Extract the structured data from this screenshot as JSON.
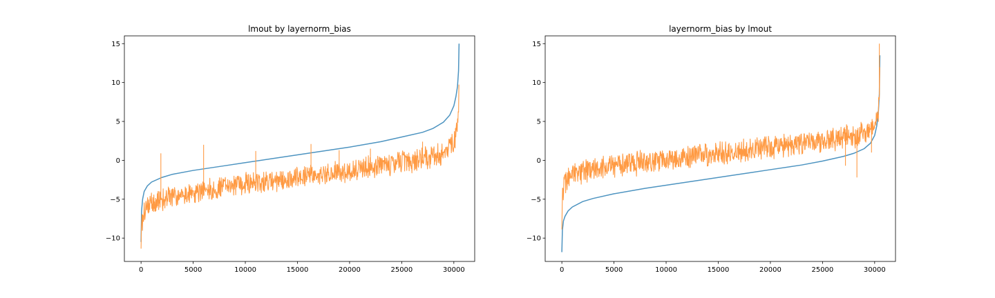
{
  "chart_data": [
    {
      "type": "line",
      "title": "lmout by layernorm_bias",
      "xlabel": "",
      "ylabel": "",
      "xlim": [
        -1600,
        32000
      ],
      "ylim": [
        -13,
        16
      ],
      "xticks": [
        0,
        5000,
        10000,
        15000,
        20000,
        25000,
        30000
      ],
      "yticks": [
        -10,
        -5,
        0,
        5,
        10,
        15
      ],
      "xtick_labels": [
        "0",
        "5000",
        "10000",
        "15000",
        "20000",
        "25000",
        "30000"
      ],
      "ytick_labels": [
        "−10",
        "−5",
        "0",
        "5",
        "10",
        "15"
      ],
      "series": [
        {
          "color": "#4c93c0",
          "x": [
            0,
            50,
            150,
            300,
            600,
            1000,
            2000,
            3000,
            5000,
            8000,
            10000,
            13000,
            15000,
            18000,
            20000,
            23000,
            25000,
            27000,
            28000,
            29000,
            29600,
            30000,
            30200,
            30350,
            30450,
            30500
          ],
          "values": [
            -10.5,
            -6.5,
            -5.0,
            -4.0,
            -3.3,
            -2.8,
            -2.2,
            -1.8,
            -1.3,
            -0.7,
            -0.3,
            0.3,
            0.7,
            1.3,
            1.7,
            2.4,
            3.0,
            3.6,
            4.1,
            4.9,
            5.8,
            7.0,
            8.2,
            9.5,
            11.5,
            15.0
          ]
        },
        {
          "color": "#ff9a43",
          "x": [
            0,
            50,
            150,
            300,
            600,
            1000,
            2000,
            3000,
            5000,
            8000,
            10000,
            13000,
            15000,
            18000,
            20000,
            23000,
            25000,
            27000,
            28000,
            29000,
            29600,
            30000,
            30200,
            30350,
            30450,
            30500
          ],
          "values": [
            -11.2,
            -8.8,
            -7.3,
            -6.5,
            -6.0,
            -5.6,
            -5.0,
            -4.6,
            -4.1,
            -3.5,
            -3.1,
            -2.6,
            -2.2,
            -1.7,
            -1.3,
            -0.7,
            -0.3,
            0.2,
            0.5,
            1.0,
            1.6,
            2.4,
            3.4,
            4.6,
            6.5,
            11.0
          ],
          "noise": 1.6,
          "spikes": [
            [
              1900,
              0.9
            ],
            [
              6000,
              2.0
            ],
            [
              11000,
              1.2
            ],
            [
              16300,
              2.1
            ],
            [
              19000,
              1.3
            ],
            [
              22000,
              1.5
            ],
            [
              27000,
              2.4
            ]
          ]
        }
      ]
    },
    {
      "type": "line",
      "title": "layernorm_bias by lmout",
      "xlabel": "",
      "ylabel": "",
      "xlim": [
        -1600,
        32000
      ],
      "ylim": [
        -13,
        16
      ],
      "xticks": [
        0,
        5000,
        10000,
        15000,
        20000,
        25000,
        30000
      ],
      "yticks": [
        -10,
        -5,
        0,
        5,
        10,
        15
      ],
      "xtick_labels": [
        "0",
        "5000",
        "10000",
        "15000",
        "20000",
        "25000",
        "30000"
      ],
      "ytick_labels": [
        "−10",
        "−5",
        "0",
        "5",
        "10",
        "15"
      ],
      "series": [
        {
          "color": "#4c93c0",
          "x": [
            0,
            50,
            150,
            300,
            600,
            1000,
            2000,
            3000,
            5000,
            8000,
            10000,
            13000,
            15000,
            18000,
            20000,
            23000,
            25000,
            27000,
            28000,
            29000,
            29600,
            30000,
            30200,
            30350,
            30450,
            30500
          ],
          "values": [
            -11.8,
            -9.0,
            -7.8,
            -7.2,
            -6.5,
            -6.0,
            -5.3,
            -4.9,
            -4.3,
            -3.6,
            -3.2,
            -2.6,
            -2.2,
            -1.6,
            -1.2,
            -0.6,
            -0.1,
            0.5,
            0.9,
            1.5,
            2.2,
            3.2,
            4.4,
            6.0,
            8.5,
            13.5
          ]
        },
        {
          "color": "#ff9a43",
          "x": [
            0,
            50,
            150,
            300,
            600,
            1000,
            2000,
            3000,
            5000,
            8000,
            10000,
            13000,
            15000,
            18000,
            20000,
            23000,
            25000,
            27000,
            28000,
            29000,
            29600,
            30000,
            30200,
            30350,
            30450,
            30500
          ],
          "values": [
            -8.0,
            -5.0,
            -3.6,
            -2.9,
            -2.4,
            -2.0,
            -1.5,
            -1.2,
            -0.8,
            -0.2,
            0.1,
            0.6,
            0.9,
            1.3,
            1.6,
            2.1,
            2.5,
            2.9,
            3.2,
            3.6,
            4.0,
            4.6,
            5.4,
            6.6,
            8.5,
            13.5
          ],
          "noise": 1.7,
          "spikes": [
            [
              28300,
              -2.2
            ],
            [
              27200,
              -0.7
            ],
            [
              29700,
              1.0
            ],
            [
              30450,
              15.0
            ]
          ]
        }
      ]
    }
  ]
}
